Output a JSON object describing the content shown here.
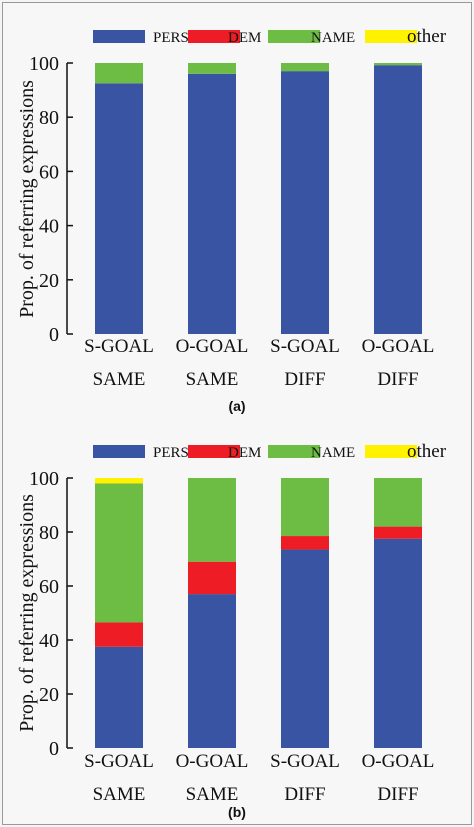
{
  "chart_data": [
    {
      "type": "bar",
      "stacked": true,
      "panel_label": "(a)",
      "categories": [
        [
          "S-GOAL",
          "SAME"
        ],
        [
          "O-GOAL",
          "SAME"
        ],
        [
          "S-GOAL",
          "DIFF"
        ],
        [
          "O-GOAL",
          "DIFF"
        ]
      ],
      "series": [
        {
          "name": "PERS",
          "color": "#3a54a4",
          "values": [
            92.5,
            96,
            97,
            99.2
          ]
        },
        {
          "name": "DEM",
          "color": "#ee1c25",
          "values": [
            0,
            0,
            0,
            0
          ]
        },
        {
          "name": "NAME",
          "color": "#6dbd45",
          "values": [
            7.5,
            4,
            3,
            0.8
          ]
        },
        {
          "name": "other",
          "color": "#fff200",
          "values": [
            0,
            0,
            0,
            0
          ]
        }
      ],
      "ylabel": "Prop. of referring expressions",
      "ylim": [
        0,
        100
      ],
      "yticks": [
        0,
        20,
        40,
        60,
        80,
        100
      ],
      "legend": "top",
      "grid": false
    },
    {
      "type": "bar",
      "stacked": true,
      "panel_label": "(b)",
      "categories": [
        [
          "S-GOAL",
          "SAME"
        ],
        [
          "O-GOAL",
          "SAME"
        ],
        [
          "S-GOAL",
          "DIFF"
        ],
        [
          "O-GOAL",
          "DIFF"
        ]
      ],
      "series": [
        {
          "name": "PERS",
          "color": "#3a54a4",
          "values": [
            37.5,
            57,
            73.5,
            77.5
          ]
        },
        {
          "name": "DEM",
          "color": "#ee1c25",
          "values": [
            9,
            12,
            5,
            4.5
          ]
        },
        {
          "name": "NAME",
          "color": "#6dbd45",
          "values": [
            51.5,
            31,
            21.5,
            18
          ]
        },
        {
          "name": "other",
          "color": "#fff200",
          "values": [
            2,
            0,
            0,
            0
          ]
        }
      ],
      "ylabel": "Prop. of referring expressions",
      "ylim": [
        0,
        100
      ],
      "yticks": [
        0,
        20,
        40,
        60,
        80,
        100
      ],
      "legend": "top",
      "grid": false
    }
  ]
}
